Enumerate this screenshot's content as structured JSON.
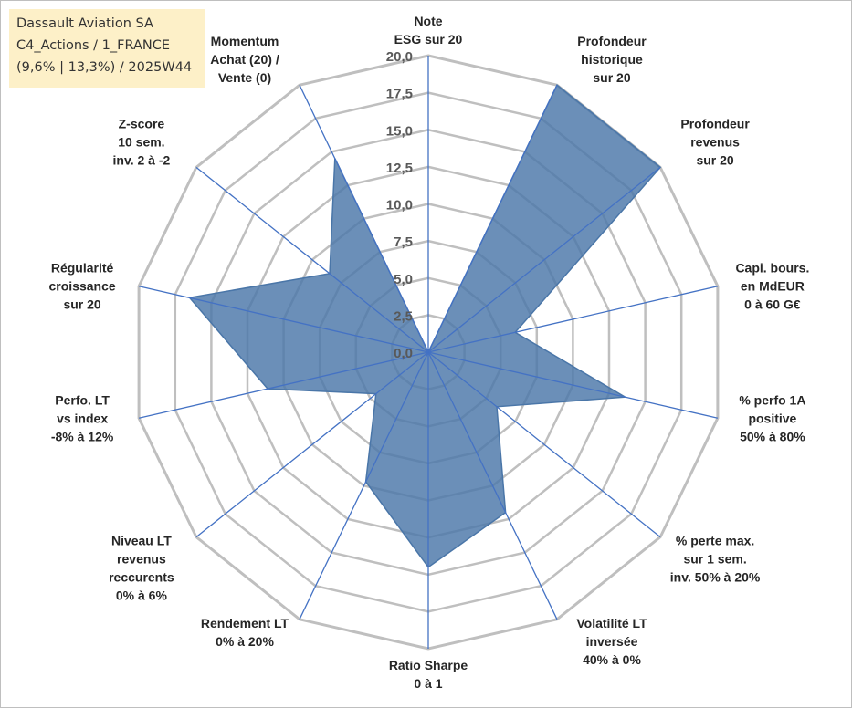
{
  "title_box": {
    "line1": "Dassault Aviation SA",
    "line2": "C4_Actions / 1_FRANCE",
    "line3": "(9,6% | 13,3%) / 2025W44"
  },
  "chart_data": {
    "type": "radar",
    "r_range": [
      0,
      20
    ],
    "r_ticks": [
      "0,0",
      "2,5",
      "5,0",
      "7,5",
      "10,0",
      "12,5",
      "15,0",
      "17,5",
      "20,0"
    ],
    "grid": true,
    "series_color": "#4a76a8",
    "grid_color": "#bfbfbf",
    "axis_color": "#4472c4",
    "axes": [
      {
        "label": [
          "Note",
          "ESG sur 20"
        ],
        "value": 0
      },
      {
        "label": [
          "Profondeur",
          "historique",
          "sur 20"
        ],
        "value": 20
      },
      {
        "label": [
          "Profondeur",
          "revenus",
          "sur 20"
        ],
        "value": 20
      },
      {
        "label": [
          "Capi. bours.",
          "en MdEUR",
          "0 à 60 G€"
        ],
        "value": 6
      },
      {
        "label": [
          "% perfo 1A",
          "positive",
          "50% à 80%"
        ],
        "value": 13.6
      },
      {
        "label": [
          "% perte max.",
          "sur 1 sem.",
          "inv. 50% à 20%"
        ],
        "value": 5.9
      },
      {
        "label": [
          "Volatilité LT",
          "inversée",
          "40% à 0%"
        ],
        "value": 12
      },
      {
        "label": [
          "Ratio Sharpe",
          "0 à 1"
        ],
        "value": 14.5
      },
      {
        "label": [
          "Rendement LT",
          "0% à 20%"
        ],
        "value": 9.7
      },
      {
        "label": [
          "Niveau LT",
          "revenus",
          "reccurents",
          "0% à 6%"
        ],
        "value": 4.5
      },
      {
        "label": [
          "Perfo. LT",
          "vs index",
          "-8% à 12%"
        ],
        "value": 11.1
      },
      {
        "label": [
          "Régularité",
          "croissance",
          "sur 20"
        ],
        "value": 16.5
      },
      {
        "label": [
          "Z-score",
          "10 sem.",
          "inv. 2 à -2"
        ],
        "value": 8.5
      },
      {
        "label": [
          "Momentum",
          "Achat (20) /",
          "Vente (0)"
        ],
        "value": 14.5
      }
    ]
  }
}
